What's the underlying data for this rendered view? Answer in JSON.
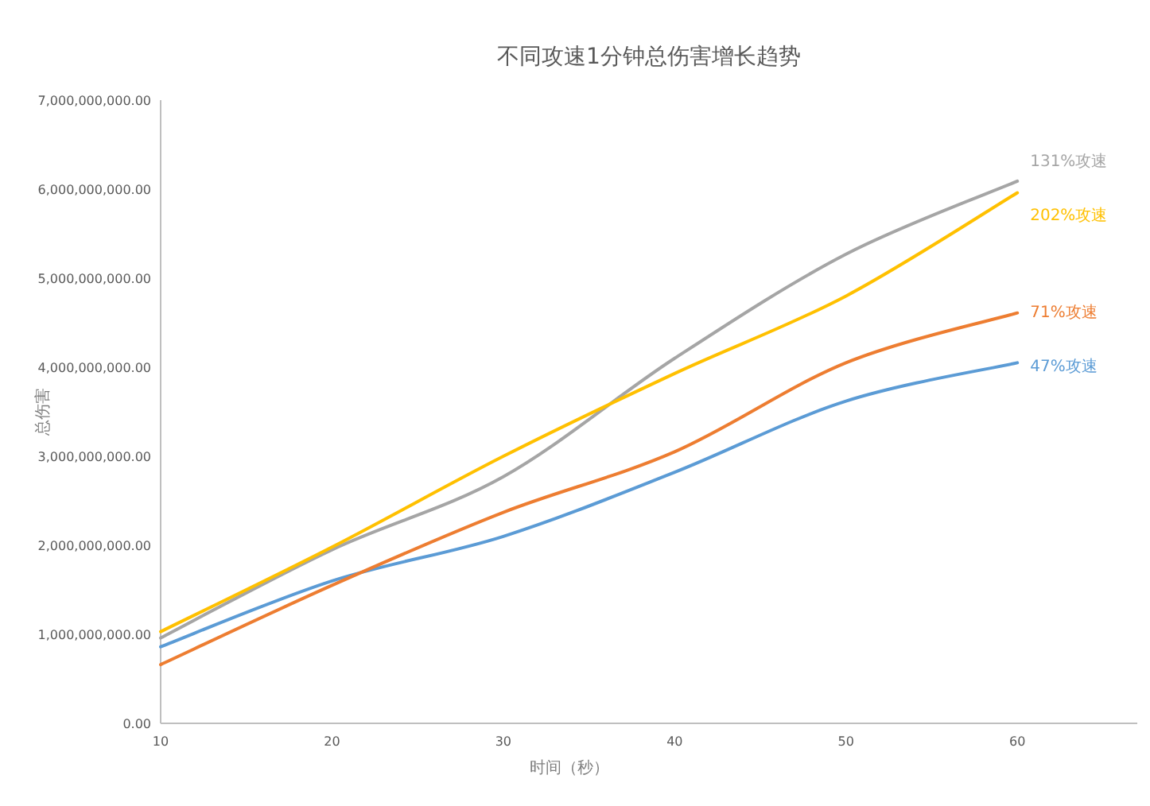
{
  "chart_data": {
    "type": "line",
    "title": "不同攻速1分钟总伤害增长趋势",
    "xlabel": "时间（秒）",
    "ylabel": "总伤害",
    "x": [
      10,
      20,
      30,
      40,
      50,
      60
    ],
    "series": [
      {
        "name": "47%攻速",
        "color": "#5b9bd5",
        "values": [
          860000000,
          1600000000,
          2100000000,
          2820000000,
          3620000000,
          4050000000
        ]
      },
      {
        "name": "71%攻速",
        "color": "#ed7d31",
        "values": [
          660000000,
          1550000000,
          2370000000,
          3050000000,
          4050000000,
          4610000000
        ]
      },
      {
        "name": "131%攻速",
        "color": "#a5a5a5",
        "values": [
          960000000,
          1950000000,
          2770000000,
          4100000000,
          5270000000,
          6090000000
        ]
      },
      {
        "name": "202%攻速",
        "color": "#ffc000",
        "values": [
          1030000000,
          1980000000,
          3000000000,
          3930000000,
          4800000000,
          5960000000
        ]
      }
    ],
    "xlim": [
      10,
      67
    ],
    "xticks": [
      10,
      20,
      30,
      40,
      50,
      60
    ],
    "ylim": [
      0,
      7000000000
    ],
    "yticks": [
      {
        "value": 0,
        "label": "0.00"
      },
      {
        "value": 1000000000,
        "label": "1,000,000,000.00"
      },
      {
        "value": 2000000000,
        "label": "2,000,000,000.00"
      },
      {
        "value": 3000000000,
        "label": "3,000,000,000.00"
      },
      {
        "value": 4000000000,
        "label": "4,000,000,000.00"
      },
      {
        "value": 5000000000,
        "label": "5,000,000,000.00"
      },
      {
        "value": 6000000000,
        "label": "6,000,000,000.00"
      },
      {
        "value": 7000000000,
        "label": "7,000,000,000.00"
      }
    ],
    "grid": false,
    "legend": false,
    "marker": "none",
    "line_style": "solid"
  }
}
